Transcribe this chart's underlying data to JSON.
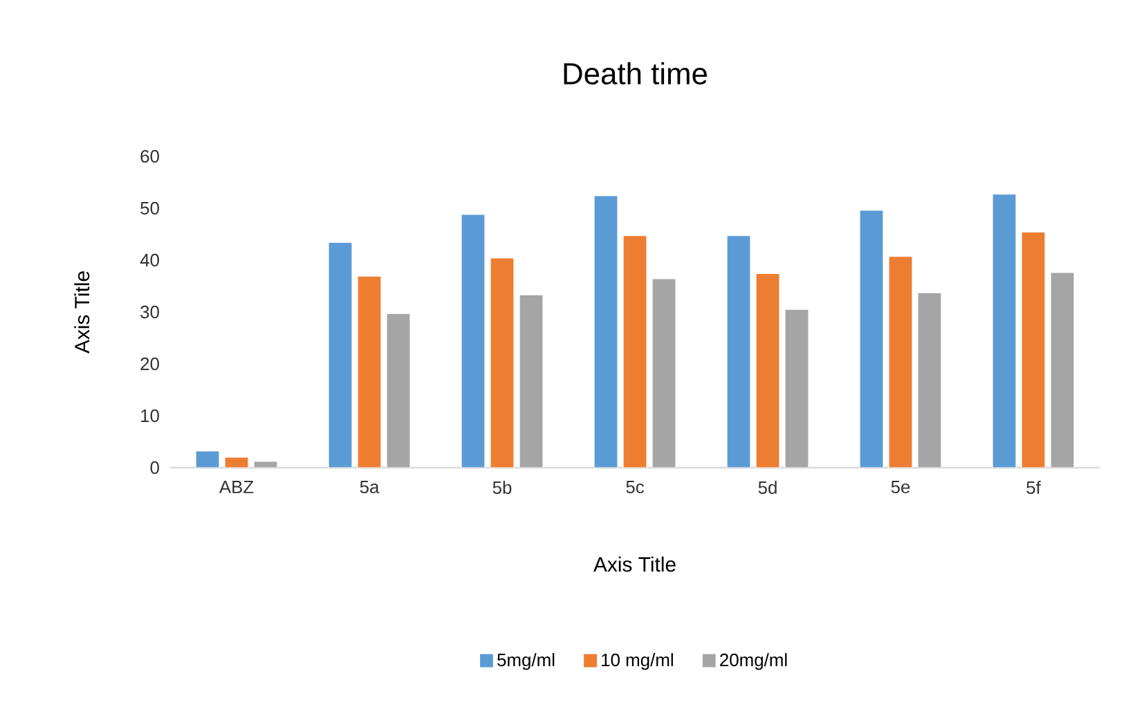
{
  "chart_data": {
    "type": "bar",
    "title": "Death time",
    "xlabel": "Axis Title",
    "ylabel": "Axis Title",
    "categories": [
      "ABZ",
      "5a",
      "5b",
      "5c",
      "5d",
      "5e",
      "5f"
    ],
    "series": [
      {
        "name": "5mg/ml",
        "color": "#5b9bd5",
        "values": [
          3.2,
          43.4,
          48.8,
          52.4,
          44.7,
          49.6,
          52.7
        ]
      },
      {
        "name": "10 mg/ml",
        "color": "#ed7d31",
        "values": [
          2.0,
          36.9,
          40.4,
          44.7,
          37.4,
          40.7,
          45.4
        ]
      },
      {
        "name": "20mg/ml",
        "color": "#a5a5a5",
        "values": [
          1.2,
          29.7,
          33.3,
          36.4,
          30.5,
          33.7,
          37.6
        ]
      }
    ],
    "ylim": [
      0,
      60
    ],
    "yticks": [
      0,
      10,
      20,
      30,
      40,
      50,
      60
    ],
    "grid": false,
    "legend": "bottom"
  }
}
